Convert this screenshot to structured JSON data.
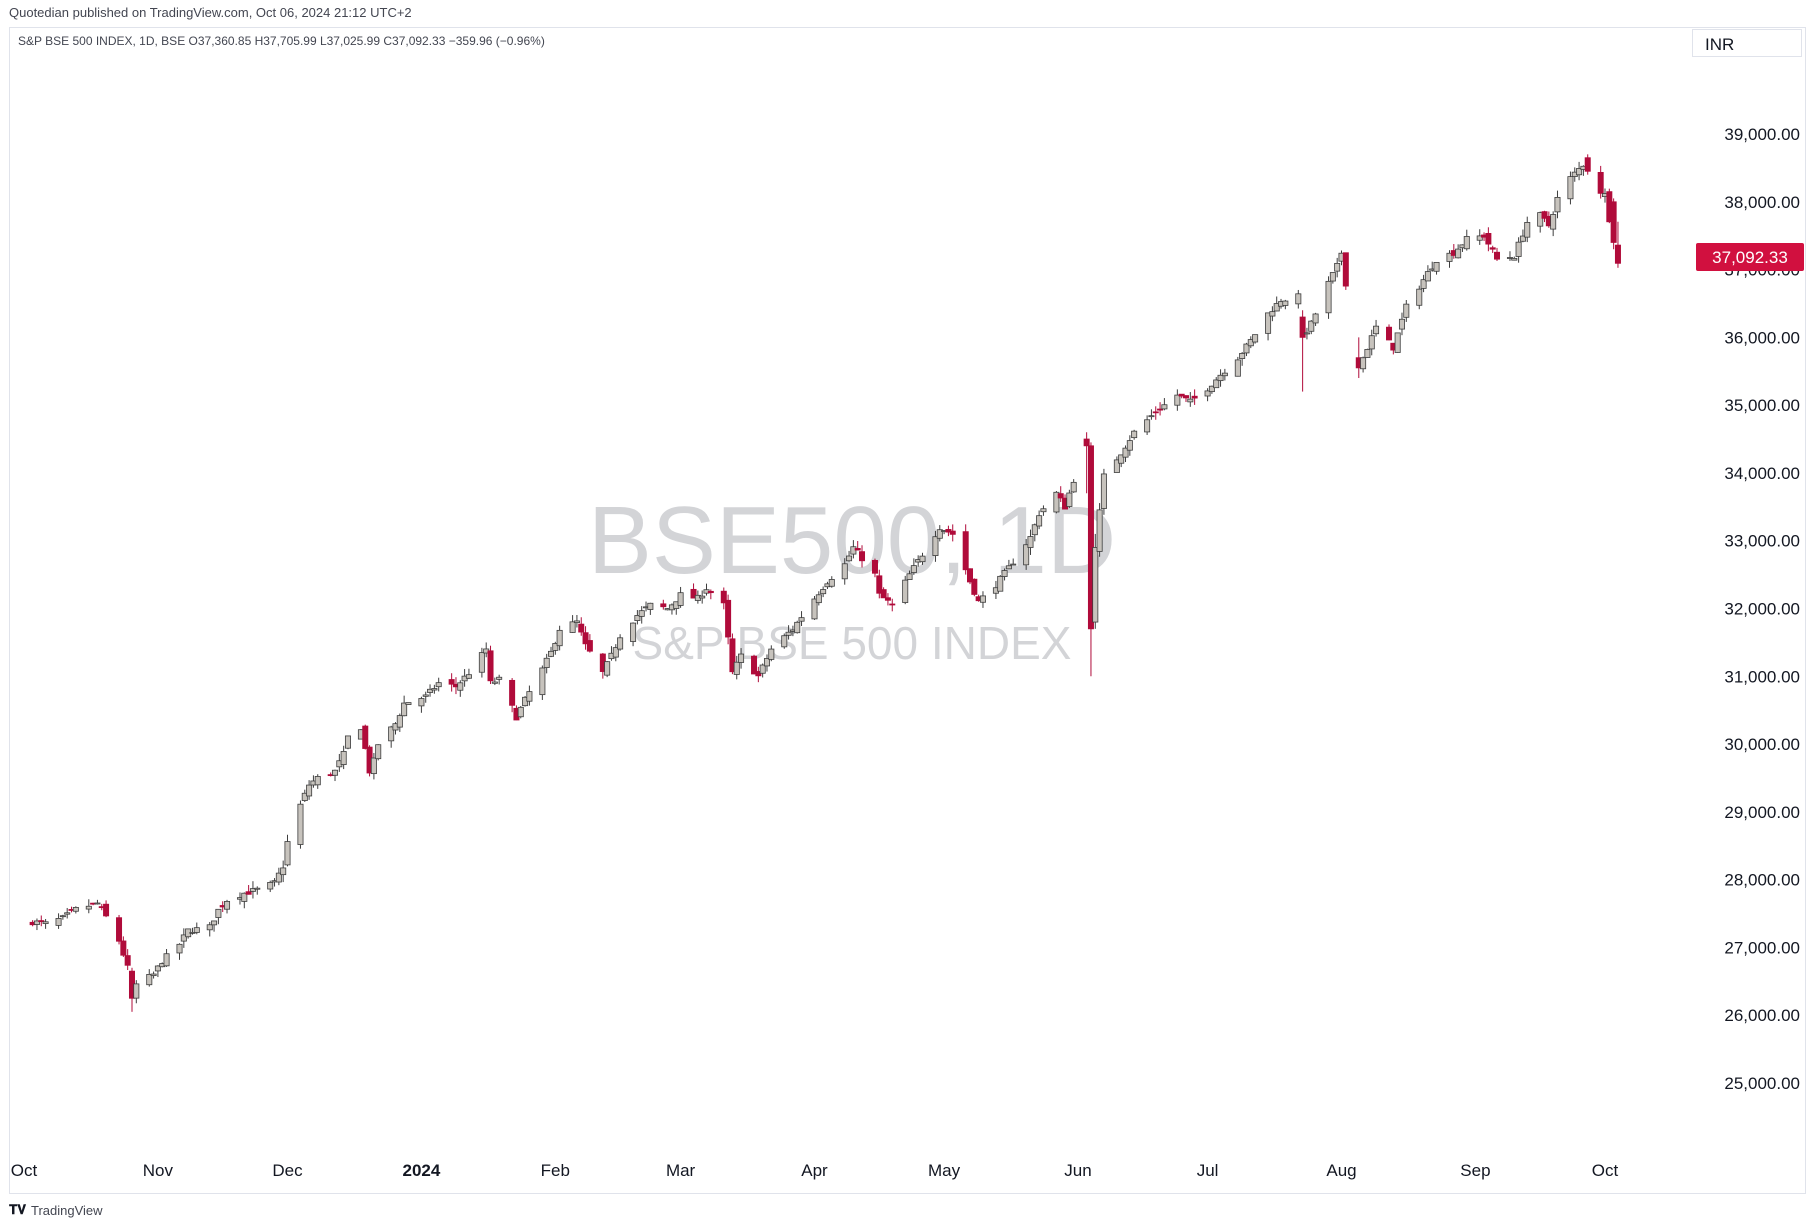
{
  "header": {
    "published": "Quotedian published on TradingView.com, Oct 06, 2024 21:12 UTC+2"
  },
  "legend": {
    "text": "S&P BSE 500 INDEX, 1D, BSE  O37,360.85  H37,705.99  L37,025.99  C37,092.33  −359.96 (−0.96%)"
  },
  "currency": "INR",
  "watermark": {
    "symbol": "BSE500, 1D",
    "name": "S&P BSE 500 INDEX"
  },
  "footer": {
    "logo_icon": "tradingview-logo-icon",
    "brand": "TradingView"
  },
  "colors": {
    "up_body": "#c7c3bd",
    "up_border": "#3d3d3d",
    "down": "#b00b3a",
    "price_tag": "#d1103f",
    "grid_border": "#e0e3eb",
    "watermark": "rgba(120,123,134,0.33)"
  },
  "chart_data": {
    "type": "candlestick",
    "y_ticks": [
      25000,
      26000,
      27000,
      28000,
      29000,
      30000,
      31000,
      32000,
      33000,
      34000,
      35000,
      36000,
      37000,
      38000,
      39000
    ],
    "y_tick_labels": [
      "25,000.00",
      "26,000.00",
      "27,000.00",
      "28,000.00",
      "29,000.00",
      "30,000.00",
      "31,000.00",
      "32,000.00",
      "33,000.00",
      "34,000.00",
      "35,000.00",
      "36,000.00",
      "37,000.00",
      "38,000.00",
      "39,000.00"
    ],
    "x_labels": [
      {
        "label": "Oct",
        "date": "2023-10-01",
        "bold": false
      },
      {
        "label": "Nov",
        "date": "2023-11-01",
        "bold": false
      },
      {
        "label": "Dec",
        "date": "2023-12-01",
        "bold": false
      },
      {
        "label": "2024",
        "date": "2024-01-01",
        "bold": true
      },
      {
        "label": "Feb",
        "date": "2024-02-01",
        "bold": false
      },
      {
        "label": "Mar",
        "date": "2024-03-01",
        "bold": false
      },
      {
        "label": "Apr",
        "date": "2024-04-01",
        "bold": false
      },
      {
        "label": "May",
        "date": "2024-05-01",
        "bold": false
      },
      {
        "label": "Jun",
        "date": "2024-06-01",
        "bold": false
      },
      {
        "label": "Jul",
        "date": "2024-07-01",
        "bold": false
      },
      {
        "label": "Aug",
        "date": "2024-08-01",
        "bold": false
      },
      {
        "label": "Sep",
        "date": "2024-09-01",
        "bold": false
      },
      {
        "label": "Oct",
        "date": "2024-10-01",
        "bold": false
      }
    ],
    "last_price": 37092.33,
    "last_price_label": "37,092.33",
    "close_path": [
      [
        "2023-10-03",
        27380
      ],
      [
        "2023-10-06",
        27350
      ],
      [
        "2023-10-10",
        27430
      ],
      [
        "2023-10-13",
        27560
      ],
      [
        "2023-10-18",
        27650
      ],
      [
        "2023-10-20",
        27450
      ],
      [
        "2023-10-23",
        27100
      ],
      [
        "2023-10-25",
        26700
      ],
      [
        "2023-10-26",
        26250
      ],
      [
        "2023-10-27",
        26450
      ],
      [
        "2023-10-31",
        26600
      ],
      [
        "2023-11-02",
        26800
      ],
      [
        "2023-11-06",
        27050
      ],
      [
        "2023-11-08",
        27250
      ],
      [
        "2023-11-13",
        27300
      ],
      [
        "2023-11-15",
        27550
      ],
      [
        "2023-11-17",
        27700
      ],
      [
        "2023-11-21",
        27800
      ],
      [
        "2023-11-24",
        27850
      ],
      [
        "2023-11-28",
        27950
      ],
      [
        "2023-11-30",
        28200
      ],
      [
        "2023-12-01",
        28550
      ],
      [
        "2023-12-04",
        29100
      ],
      [
        "2023-12-06",
        29400
      ],
      [
        "2023-12-08",
        29500
      ],
      [
        "2023-12-12",
        29600
      ],
      [
        "2023-12-14",
        29850
      ],
      [
        "2023-12-15",
        30100
      ],
      [
        "2023-12-18",
        30250
      ],
      [
        "2023-12-20",
        29600
      ],
      [
        "2023-12-21",
        29750
      ],
      [
        "2023-12-22",
        30000
      ],
      [
        "2023-12-26",
        30300
      ],
      [
        "2023-12-28",
        30600
      ],
      [
        "2024-01-02",
        30700
      ],
      [
        "2024-01-05",
        30900
      ],
      [
        "2024-01-09",
        30850
      ],
      [
        "2024-01-12",
        31050
      ],
      [
        "2024-01-16",
        31400
      ],
      [
        "2024-01-17",
        30900
      ],
      [
        "2024-01-19",
        30950
      ],
      [
        "2024-01-23",
        30400
      ],
      [
        "2024-01-25",
        30650
      ],
      [
        "2024-01-29",
        31100
      ],
      [
        "2024-01-31",
        31350
      ],
      [
        "2024-02-02",
        31700
      ],
      [
        "2024-02-06",
        31800
      ],
      [
        "2024-02-08",
        31450
      ],
      [
        "2024-02-12",
        31050
      ],
      [
        "2024-02-14",
        31300
      ],
      [
        "2024-02-16",
        31600
      ],
      [
        "2024-02-20",
        31900
      ],
      [
        "2024-02-23",
        32050
      ],
      [
        "2024-02-27",
        32000
      ],
      [
        "2024-03-01",
        32200
      ],
      [
        "2024-03-05",
        32150
      ],
      [
        "2024-03-07",
        32300
      ],
      [
        "2024-03-11",
        32050
      ],
      [
        "2024-03-13",
        31050
      ],
      [
        "2024-03-15",
        31300
      ],
      [
        "2024-03-19",
        31000
      ],
      [
        "2024-03-22",
        31400
      ],
      [
        "2024-03-27",
        31700
      ],
      [
        "2024-04-01",
        32150
      ],
      [
        "2024-04-04",
        32400
      ],
      [
        "2024-04-08",
        32650
      ],
      [
        "2024-04-10",
        32900
      ],
      [
        "2024-04-15",
        32500
      ],
      [
        "2024-04-16",
        32200
      ],
      [
        "2024-04-19",
        32050
      ],
      [
        "2024-04-23",
        32500
      ],
      [
        "2024-04-26",
        32800
      ],
      [
        "2024-04-30",
        33200
      ],
      [
        "2024-05-03",
        33100
      ],
      [
        "2024-05-07",
        32400
      ],
      [
        "2024-05-09",
        32100
      ],
      [
        "2024-05-13",
        32350
      ],
      [
        "2024-05-16",
        32600
      ],
      [
        "2024-05-21",
        33050
      ],
      [
        "2024-05-23",
        33400
      ],
      [
        "2024-05-27",
        33700
      ],
      [
        "2024-05-29",
        33500
      ],
      [
        "2024-05-31",
        33900
      ],
      [
        "2024-06-03",
        34400
      ],
      [
        "2024-06-04",
        31700
      ],
      [
        "2024-06-05",
        32900
      ],
      [
        "2024-06-07",
        33950
      ],
      [
        "2024-06-11",
        34300
      ],
      [
        "2024-06-14",
        34600
      ],
      [
        "2024-06-19",
        34900
      ],
      [
        "2024-06-24",
        35150
      ],
      [
        "2024-06-27",
        35050
      ],
      [
        "2024-07-01",
        35250
      ],
      [
        "2024-07-04",
        35450
      ],
      [
        "2024-07-08",
        35700
      ],
      [
        "2024-07-11",
        35950
      ],
      [
        "2024-07-15",
        36350
      ],
      [
        "2024-07-18",
        36550
      ],
      [
        "2024-07-22",
        36600
      ],
      [
        "2024-07-23",
        36000
      ],
      [
        "2024-07-25",
        36200
      ],
      [
        "2024-07-29",
        36800
      ],
      [
        "2024-07-31",
        37050
      ],
      [
        "2024-08-01",
        37250
      ],
      [
        "2024-08-02",
        36800
      ],
      [
        "2024-08-05",
        35550
      ],
      [
        "2024-08-07",
        35850
      ],
      [
        "2024-08-09",
        36150
      ],
      [
        "2024-08-13",
        35850
      ],
      [
        "2024-08-16",
        36450
      ],
      [
        "2024-08-20",
        36850
      ],
      [
        "2024-08-23",
        37150
      ],
      [
        "2024-08-27",
        37250
      ],
      [
        "2024-08-30",
        37450
      ],
      [
        "2024-09-03",
        37500
      ],
      [
        "2024-09-06",
        37150
      ],
      [
        "2024-09-10",
        37200
      ],
      [
        "2024-09-13",
        37700
      ],
      [
        "2024-09-16",
        37800
      ],
      [
        "2024-09-18",
        37650
      ],
      [
        "2024-09-20",
        38050
      ],
      [
        "2024-09-23",
        38350
      ],
      [
        "2024-09-26",
        38550
      ],
      [
        "2024-09-27",
        38450
      ],
      [
        "2024-09-30",
        38150
      ],
      [
        "2024-10-01",
        38100
      ],
      [
        "2024-10-03",
        37400
      ],
      [
        "2024-10-04",
        37092.33
      ]
    ],
    "notable_candles": [
      {
        "date": "2023-10-26",
        "open": 26650,
        "high": 26700,
        "low": 26050,
        "close": 26250
      },
      {
        "date": "2024-06-03",
        "open": 34500,
        "high": 34600,
        "low": 33700,
        "close": 34400
      },
      {
        "date": "2024-06-04",
        "open": 34400,
        "high": 34450,
        "low": 31000,
        "close": 31700
      },
      {
        "date": "2024-06-05",
        "open": 31800,
        "high": 33100,
        "low": 31700,
        "close": 32900
      },
      {
        "date": "2024-07-23",
        "open": 36300,
        "high": 36400,
        "low": 35200,
        "close": 36000
      },
      {
        "date": "2024-08-05",
        "open": 35700,
        "high": 36000,
        "low": 35400,
        "close": 35550
      },
      {
        "date": "2024-09-27",
        "open": 38650,
        "high": 38700,
        "low": 38400,
        "close": 38450
      },
      {
        "date": "2024-10-03",
        "open": 38000,
        "high": 38050,
        "low": 37300,
        "close": 37400
      },
      {
        "date": "2024-10-04",
        "open": 37360.85,
        "high": 37705.99,
        "low": 37025.99,
        "close": 37092.33
      }
    ]
  }
}
